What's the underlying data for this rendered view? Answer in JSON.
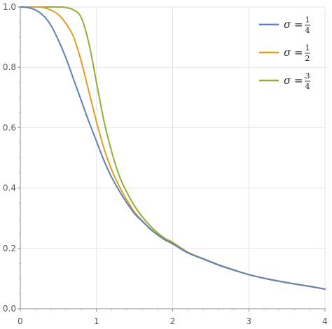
{
  "chart_data": {
    "type": "line",
    "title": "",
    "xlabel": "",
    "ylabel": "",
    "xlim": [
      0,
      4
    ],
    "ylim": [
      0,
      1
    ],
    "x_ticks": [
      "0",
      "1",
      "2",
      "3",
      "4"
    ],
    "y_ticks": [
      "0.0",
      "0.2",
      "0.4",
      "0.6",
      "0.8",
      "1.0"
    ],
    "grid": true,
    "legend_position": "top-right",
    "series": [
      {
        "symbol": "σ",
        "equals": "=",
        "numerator": "1",
        "denominator": "4",
        "color": "#5e81b5",
        "x": [
          0,
          0.1,
          0.2,
          0.3,
          0.4,
          0.5,
          0.6,
          0.7,
          0.8,
          0.9,
          1.0,
          1.1,
          1.2,
          1.3,
          1.4,
          1.5,
          1.6,
          1.7,
          1.8,
          1.9,
          2.0,
          2.2,
          2.4,
          2.6,
          2.8,
          3.0,
          3.2,
          3.4,
          3.6,
          3.8,
          4.0
        ],
        "y": [
          1.0,
          0.998,
          0.99,
          0.972,
          0.94,
          0.89,
          0.83,
          0.76,
          0.69,
          0.62,
          0.555,
          0.49,
          0.435,
          0.39,
          0.35,
          0.315,
          0.29,
          0.265,
          0.245,
          0.228,
          0.215,
          0.185,
          0.165,
          0.145,
          0.128,
          0.113,
          0.101,
          0.091,
          0.082,
          0.074,
          0.065
        ]
      },
      {
        "symbol": "σ",
        "equals": "=",
        "numerator": "1",
        "denominator": "2",
        "color": "#e19c24",
        "x": [
          0,
          0.1,
          0.2,
          0.3,
          0.4,
          0.5,
          0.6,
          0.7,
          0.8,
          0.9,
          1.0,
          1.1,
          1.2,
          1.3,
          1.4,
          1.5,
          1.6,
          1.7,
          1.8,
          1.9,
          2.0,
          2.2,
          2.4,
          2.6,
          2.8,
          3.0,
          3.2,
          3.4,
          3.6,
          3.8,
          4.0
        ],
        "y": [
          1.0,
          1.0,
          1.0,
          0.998,
          0.99,
          0.975,
          0.945,
          0.9,
          0.82,
          0.72,
          0.62,
          0.53,
          0.46,
          0.405,
          0.36,
          0.32,
          0.292,
          0.267,
          0.246,
          0.229,
          0.217,
          0.186,
          0.165,
          0.145,
          0.128,
          0.113,
          0.101,
          0.091,
          0.082,
          0.074,
          0.065
        ]
      },
      {
        "symbol": "σ",
        "equals": "=",
        "numerator": "3",
        "denominator": "4",
        "color": "#8fb032",
        "x": [
          0,
          0.1,
          0.2,
          0.3,
          0.4,
          0.5,
          0.6,
          0.7,
          0.8,
          0.9,
          1.0,
          1.1,
          1.2,
          1.3,
          1.4,
          1.5,
          1.6,
          1.7,
          1.8,
          1.9,
          2.0,
          2.2,
          2.4,
          2.6,
          2.8,
          3.0,
          3.2,
          3.4,
          3.6,
          3.8,
          4.0
        ],
        "y": [
          1.0,
          1.0,
          1.0,
          1.0,
          1.0,
          1.0,
          0.998,
          0.99,
          0.965,
          0.88,
          0.75,
          0.62,
          0.52,
          0.44,
          0.385,
          0.34,
          0.305,
          0.276,
          0.252,
          0.233,
          0.22,
          0.187,
          0.166,
          0.146,
          0.129,
          0.113,
          0.101,
          0.091,
          0.082,
          0.074,
          0.065
        ]
      }
    ]
  }
}
